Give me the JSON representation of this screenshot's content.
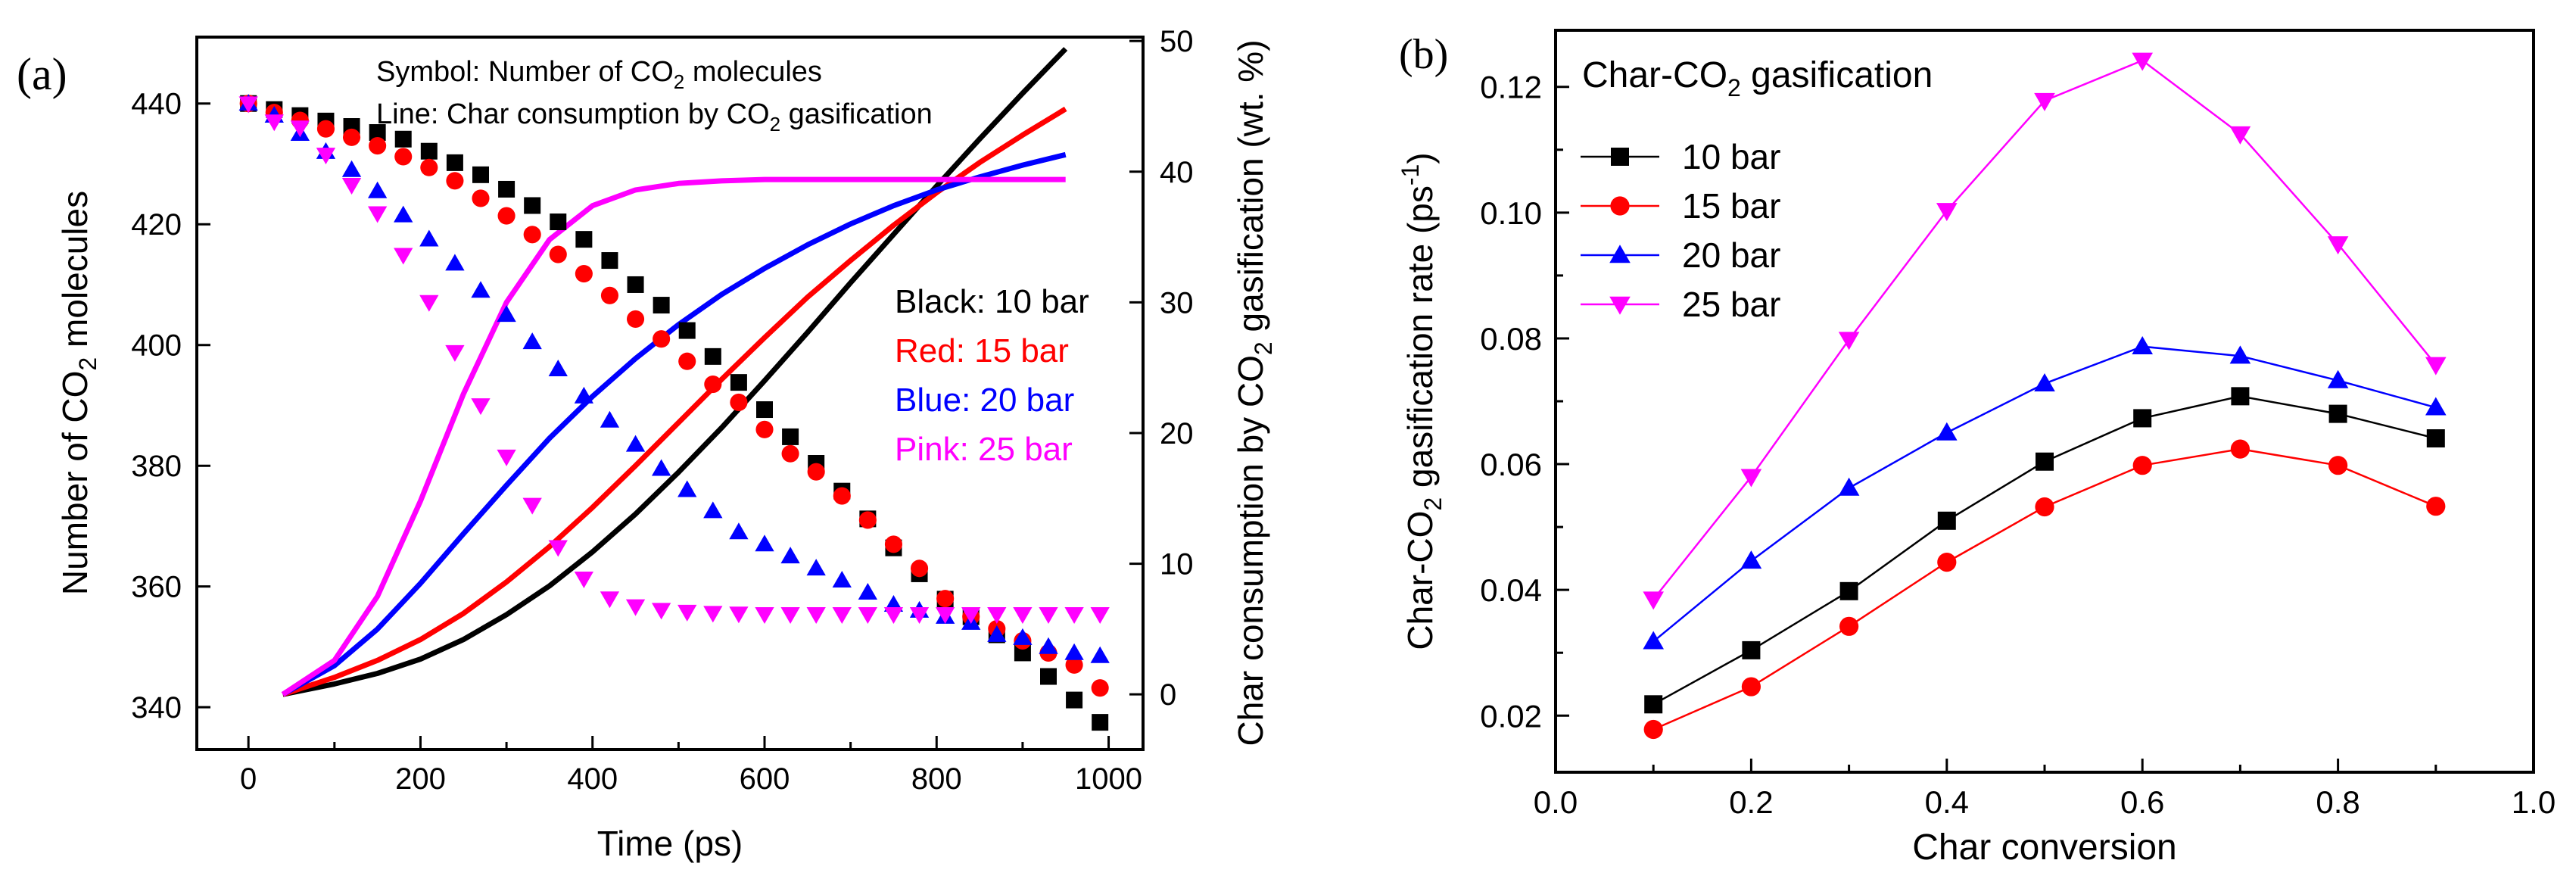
{
  "chart_data": [
    {
      "type": "scatter",
      "panel_label": "(a)",
      "title": "",
      "annotations": {
        "symbol_note_prefix": "Symbol: Number of CO",
        "symbol_note_sub": "2",
        "symbol_note_suffix": " molecules",
        "line_note_prefix": "Line: Char consumption by CO",
        "line_note_sub": "2",
        "line_note_suffix": " gasification"
      },
      "legend": {
        "placement": "right-middle",
        "entries": [
          {
            "label": "Black: 10 bar",
            "color": "#000000"
          },
          {
            "label": "Red: 15 bar",
            "color": "#ff0000"
          },
          {
            "label": "Blue: 20 bar",
            "color": "#0000ff"
          },
          {
            "label": "Pink: 25 bar",
            "color": "#ff00ff"
          }
        ]
      },
      "xlabel": "Time (ps)",
      "ylabel_prefix": "Number of CO",
      "ylabel_sub": "2",
      "ylabel_suffix": " molecules",
      "y2label_prefix": "Char consumption by CO",
      "y2label_sub": "2",
      "y2label_suffix": " gasification (wt. %)",
      "xlim": [
        -60,
        1040
      ],
      "ylim": [
        333,
        451
      ],
      "y2lim": [
        -4.22,
        50.3
      ],
      "xticks": [
        0,
        200,
        400,
        600,
        800,
        1000
      ],
      "yticks": [
        340,
        360,
        380,
        400,
        420,
        440
      ],
      "y2ticks": [
        0,
        10,
        20,
        30,
        40,
        50
      ],
      "series_points": [
        {
          "name": "10 bar",
          "color": "#000000",
          "marker": "square",
          "x": [
            0,
            30,
            60,
            90,
            120,
            150,
            180,
            210,
            240,
            270,
            300,
            330,
            360,
            390,
            420,
            450,
            480,
            510,
            540,
            570,
            600,
            630,
            660,
            690,
            720,
            750,
            780,
            810,
            840,
            870,
            900,
            930,
            960,
            990
          ],
          "y": [
            440,
            439,
            438,
            437.1,
            436.2,
            435.2,
            434.1,
            432.1,
            430.2,
            428.2,
            425.8,
            423.1,
            420.4,
            417.5,
            414,
            410,
            406.6,
            402.4,
            398.1,
            393.8,
            389.3,
            384.8,
            380.4,
            375.8,
            371.2,
            366.4,
            362.1,
            357.9,
            355,
            352,
            349,
            345.1,
            341.2,
            337.5
          ]
        },
        {
          "name": "15 bar",
          "color": "#ff0000",
          "marker": "circle",
          "x": [
            0,
            30,
            60,
            90,
            120,
            150,
            180,
            210,
            240,
            270,
            300,
            330,
            360,
            390,
            420,
            450,
            480,
            510,
            540,
            570,
            600,
            630,
            660,
            690,
            720,
            750,
            780,
            810,
            840,
            870,
            900,
            930,
            960,
            990
          ],
          "y": [
            440,
            438.5,
            437.2,
            435.8,
            434.4,
            433,
            431.2,
            429.4,
            427.2,
            424.3,
            421.4,
            418.3,
            415,
            411.8,
            408.2,
            404.3,
            401,
            397.3,
            393.5,
            390.5,
            386,
            382,
            379,
            375,
            371,
            367,
            363,
            358,
            355,
            353,
            351,
            349,
            347,
            343.2
          ]
        },
        {
          "name": "20 bar",
          "color": "#0000ff",
          "marker": "triangle-up",
          "x": [
            0,
            30,
            60,
            90,
            120,
            150,
            180,
            210,
            240,
            270,
            300,
            330,
            360,
            390,
            420,
            450,
            480,
            510,
            540,
            570,
            600,
            630,
            660,
            690,
            720,
            750,
            780,
            810,
            840,
            870,
            900,
            930,
            960,
            990
          ],
          "y": [
            440,
            438,
            435,
            432,
            429,
            425.5,
            421.5,
            417.5,
            413.5,
            409,
            405,
            400.5,
            396,
            391.5,
            387.5,
            383.5,
            379.5,
            376,
            372.5,
            369,
            367,
            365,
            363,
            361,
            359,
            357,
            356,
            355,
            354,
            352,
            351.5,
            350,
            349,
            348.5
          ]
        },
        {
          "name": "25 bar",
          "color": "#ff00ff",
          "marker": "triangle-down",
          "x": [
            0,
            30,
            60,
            90,
            120,
            150,
            180,
            210,
            240,
            270,
            300,
            330,
            360,
            390,
            420,
            450,
            480,
            510,
            540,
            570,
            600,
            630,
            660,
            690,
            720,
            750,
            780,
            810,
            840,
            870,
            900,
            930,
            960,
            990
          ],
          "y": [
            440,
            437,
            436,
            431.5,
            426.5,
            421.8,
            414.9,
            407.1,
            398.8,
            390,
            381.5,
            373.5,
            366.5,
            361.3,
            358,
            356.7,
            356.1,
            355.8,
            355.6,
            355.5,
            355.4,
            355.4,
            355.4,
            355.4,
            355.4,
            355.4,
            355.4,
            355.4,
            355.4,
            355.4,
            355.4,
            355.4,
            355.4,
            355.4
          ]
        }
      ],
      "series_lines": [
        {
          "name": "10 bar",
          "color": "#000000",
          "x": [
            40,
            100,
            150,
            200,
            250,
            300,
            350,
            400,
            450,
            500,
            550,
            600,
            650,
            700,
            750,
            800,
            850,
            900,
            950
          ],
          "y2": [
            0,
            0.8,
            1.6,
            2.7,
            4.2,
            6.1,
            8.3,
            10.9,
            13.8,
            17,
            20.4,
            24,
            27.7,
            31.5,
            35.2,
            38.9,
            42.5,
            46,
            49.4
          ]
        },
        {
          "name": "15 bar",
          "color": "#ff0000",
          "x": [
            40,
            100,
            150,
            200,
            250,
            300,
            350,
            400,
            450,
            500,
            550,
            600,
            650,
            700,
            750,
            800,
            850,
            900,
            950
          ],
          "y2": [
            0,
            1.3,
            2.6,
            4.2,
            6.2,
            8.6,
            11.3,
            14.3,
            17.5,
            20.8,
            24.1,
            27.3,
            30.4,
            33.2,
            35.9,
            38.4,
            40.7,
            42.8,
            44.8
          ]
        },
        {
          "name": "20 bar",
          "color": "#0000ff",
          "x": [
            40,
            100,
            150,
            200,
            250,
            300,
            350,
            400,
            450,
            500,
            550,
            600,
            650,
            700,
            750,
            800,
            850,
            900,
            950
          ],
          "y2": [
            0,
            2.2,
            5,
            8.5,
            12.3,
            16,
            19.6,
            22.8,
            25.7,
            28.3,
            30.6,
            32.6,
            34.4,
            36,
            37.4,
            38.6,
            39.6,
            40.5,
            41.3
          ]
        },
        {
          "name": "25 bar",
          "color": "#ff00ff",
          "x": [
            40,
            100,
            150,
            200,
            250,
            300,
            350,
            400,
            450,
            500,
            550,
            600,
            650,
            700,
            750,
            800,
            850,
            900,
            950
          ],
          "y2": [
            0,
            2.6,
            7.5,
            14.8,
            23,
            30,
            34.8,
            37.4,
            38.6,
            39.1,
            39.3,
            39.4,
            39.4,
            39.4,
            39.4,
            39.4,
            39.4,
            39.4,
            39.4
          ]
        }
      ]
    },
    {
      "type": "line",
      "panel_label": "(b)",
      "title_prefix": "Char-CO",
      "title_sub": "2",
      "title_suffix": " gasification",
      "xlabel": "Char conversion",
      "ylabel_prefix": "Char-CO",
      "ylabel_sub": "2",
      "ylabel_mid": " gasification rate (ps",
      "ylabel_sup": "-1",
      "ylabel_suffix": ")",
      "xlim": [
        0.0,
        1.0
      ],
      "ylim": [
        0.011,
        0.129
      ],
      "xticks": [
        "0.0",
        "0.2",
        "0.4",
        "0.6",
        "0.8",
        "1.0"
      ],
      "yticks": [
        "0.02",
        "0.04",
        "0.06",
        "0.08",
        "0.10",
        "0.12"
      ],
      "legend_placement": "top-left",
      "x": [
        0.1,
        0.2,
        0.3,
        0.4,
        0.5,
        0.6,
        0.7,
        0.8,
        0.9
      ],
      "series": [
        {
          "name": "10 bar",
          "color": "#000000",
          "marker": "square",
          "values": [
            0.0218,
            0.0304,
            0.0398,
            0.051,
            0.0604,
            0.0673,
            0.0708,
            0.068,
            0.0641
          ]
        },
        {
          "name": "15 bar",
          "color": "#ff0000",
          "marker": "circle",
          "values": [
            0.0178,
            0.0246,
            0.0342,
            0.0444,
            0.0532,
            0.0598,
            0.0624,
            0.0598,
            0.0533
          ]
        },
        {
          "name": "20 bar",
          "color": "#0000ff",
          "marker": "triangle-up",
          "values": [
            0.0318,
            0.0446,
            0.0562,
            0.065,
            0.0728,
            0.0787,
            0.0772,
            0.0733,
            0.069
          ]
        },
        {
          "name": "25 bar",
          "color": "#ff00ff",
          "marker": "triangle-down",
          "values": [
            0.0385,
            0.058,
            0.0798,
            0.1003,
            0.1178,
            0.1242,
            0.1125,
            0.095,
            0.0758
          ]
        }
      ]
    }
  ]
}
